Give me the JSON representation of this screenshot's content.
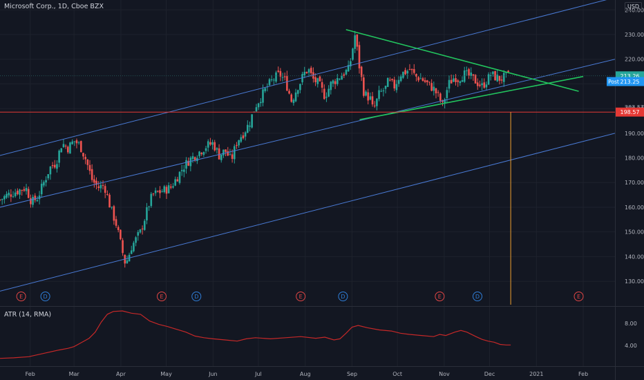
{
  "chart_data": {
    "type": "line",
    "title": "Microsoft Corp., 1D, Cboe BZX",
    "currency": "USD",
    "y_ticks": [
      "130.00",
      "140.00",
      "150.00",
      "160.00",
      "170.00",
      "180.00",
      "190.00",
      "200.00",
      "210.00",
      "220.00",
      "230.00",
      "240.00"
    ],
    "y_tick_values": [
      130,
      140,
      150,
      160,
      170,
      180,
      190,
      200,
      210,
      220,
      230,
      240
    ],
    "ylim": [
      120.5,
      244
    ],
    "x_ticks": [
      "Feb",
      "Mar",
      "Apr",
      "May",
      "Jun",
      "Jul",
      "Aug",
      "Sep",
      "Oct",
      "Nov",
      "Dec",
      "2021",
      "Feb"
    ],
    "x_tick_days": [
      31,
      60,
      91,
      121,
      152,
      182,
      213,
      244,
      274,
      305,
      335,
      366,
      397
    ],
    "xlim": [
      11,
      418
    ],
    "close_path": [
      [
        11,
        163
      ],
      [
        16,
        165
      ],
      [
        20,
        166
      ],
      [
        24,
        167
      ],
      [
        28,
        168
      ],
      [
        32,
        162
      ],
      [
        36,
        164
      ],
      [
        40,
        170
      ],
      [
        44,
        176
      ],
      [
        48,
        178
      ],
      [
        52,
        186
      ],
      [
        56,
        184
      ],
      [
        60,
        187
      ],
      [
        64,
        185
      ],
      [
        68,
        179
      ],
      [
        72,
        171
      ],
      [
        76,
        168
      ],
      [
        80,
        169
      ],
      [
        84,
        160
      ],
      [
        88,
        153
      ],
      [
        92,
        142
      ],
      [
        94,
        137
      ],
      [
        96,
        140
      ],
      [
        98,
        144
      ],
      [
        100,
        146
      ],
      [
        104,
        150
      ],
      [
        108,
        158
      ],
      [
        110,
        162
      ],
      [
        112,
        165
      ],
      [
        116,
        166
      ],
      [
        120,
        167
      ],
      [
        124,
        168
      ],
      [
        128,
        172
      ],
      [
        132,
        176
      ],
      [
        136,
        179
      ],
      [
        140,
        181
      ],
      [
        144,
        183
      ],
      [
        148,
        185
      ],
      [
        152,
        186
      ],
      [
        156,
        181
      ],
      [
        160,
        183
      ],
      [
        164,
        179
      ],
      [
        168,
        187
      ],
      [
        172,
        190
      ],
      [
        176,
        194
      ],
      [
        180,
        201
      ],
      [
        184,
        205
      ],
      [
        188,
        209
      ],
      [
        192,
        212
      ],
      [
        196,
        214
      ],
      [
        200,
        211
      ],
      [
        204,
        203
      ],
      [
        208,
        209
      ],
      [
        210,
        211
      ],
      [
        212,
        214
      ],
      [
        215,
        216
      ],
      [
        218,
        212
      ],
      [
        222,
        210
      ],
      [
        226,
        205
      ],
      [
        230,
        210
      ],
      [
        234,
        212
      ],
      [
        238,
        214
      ],
      [
        242,
        216
      ],
      [
        246,
        230
      ],
      [
        247,
        226
      ],
      [
        248,
        220
      ],
      [
        252,
        206
      ],
      [
        256,
        204
      ],
      [
        258,
        199
      ],
      [
        262,
        206
      ],
      [
        266,
        208
      ],
      [
        268,
        211
      ],
      [
        272,
        209
      ],
      [
        276,
        214
      ],
      [
        280,
        215
      ],
      [
        282,
        216
      ],
      [
        286,
        213
      ],
      [
        290,
        212
      ],
      [
        294,
        210
      ],
      [
        298,
        208
      ],
      [
        302,
        204
      ],
      [
        304,
        201
      ],
      [
        306,
        206
      ],
      [
        308,
        210
      ],
      [
        312,
        213
      ],
      [
        314,
        212
      ],
      [
        318,
        214
      ],
      [
        322,
        213
      ],
      [
        326,
        211
      ],
      [
        330,
        209
      ],
      [
        334,
        212
      ],
      [
        336,
        214
      ],
      [
        338,
        213
      ],
      [
        342,
        212
      ],
      [
        346,
        213
      ],
      [
        348,
        213.25
      ]
    ],
    "price_labels": {
      "last": "213.26",
      "post": "213.25",
      "post_prefix": "Post",
      "hline": "198.57",
      "upper_tick": "203.57"
    },
    "price_values": {
      "last": 213.26,
      "post": 213.25,
      "hline": 198.57
    },
    "events": [
      {
        "day": 25,
        "label": "E",
        "kind": "earnings"
      },
      {
        "day": 41,
        "label": "D",
        "kind": "dividend"
      },
      {
        "day": 118,
        "label": "E",
        "kind": "earnings"
      },
      {
        "day": 141,
        "label": "D",
        "kind": "dividend"
      },
      {
        "day": 210,
        "label": "E",
        "kind": "earnings"
      },
      {
        "day": 238,
        "label": "D",
        "kind": "dividend"
      },
      {
        "day": 302,
        "label": "E",
        "kind": "earnings"
      },
      {
        "day": 327,
        "label": "D",
        "kind": "dividend"
      },
      {
        "day": 394,
        "label": "E",
        "kind": "earnings"
      }
    ],
    "trendlines": [
      {
        "name": "channel-upper",
        "color": "#4a7bd6",
        "p1": [
          11,
          181
        ],
        "p2": [
          418,
          245
        ]
      },
      {
        "name": "channel-middle",
        "color": "#4a7bd6",
        "p1": [
          11,
          160
        ],
        "p2": [
          418,
          220
        ]
      },
      {
        "name": "channel-lower",
        "color": "#4a7bd6",
        "p1": [
          11,
          126
        ],
        "p2": [
          418,
          190
        ]
      },
      {
        "name": "triangle-upper",
        "color": "#22c55e",
        "p1": [
          240,
          232
        ],
        "p2": [
          394,
          207
        ]
      },
      {
        "name": "triangle-lower",
        "color": "#22c55e",
        "p1": [
          249,
          195.5
        ],
        "p2": [
          397,
          213
        ]
      }
    ],
    "vline_day": 349,
    "atr": {
      "title": "ATR (14, RMA)",
      "y_ticks": [
        "4.00",
        "8.00"
      ],
      "y_tick_values": [
        4,
        8
      ],
      "ylim": [
        0.3,
        10.7
      ],
      "values": [
        [
          11,
          1.7
        ],
        [
          20,
          1.8
        ],
        [
          30,
          2.0
        ],
        [
          40,
          2.6
        ],
        [
          50,
          3.2
        ],
        [
          56,
          3.5
        ],
        [
          60,
          3.8
        ],
        [
          64,
          4.4
        ],
        [
          70,
          5.3
        ],
        [
          74,
          6.4
        ],
        [
          78,
          8.2
        ],
        [
          82,
          9.6
        ],
        [
          86,
          10.1
        ],
        [
          92,
          10.2
        ],
        [
          98,
          9.8
        ],
        [
          104,
          9.6
        ],
        [
          110,
          8.4
        ],
        [
          116,
          7.8
        ],
        [
          122,
          7.4
        ],
        [
          128,
          6.9
        ],
        [
          134,
          6.4
        ],
        [
          140,
          5.7
        ],
        [
          146,
          5.4
        ],
        [
          152,
          5.2
        ],
        [
          160,
          5.0
        ],
        [
          168,
          4.8
        ],
        [
          174,
          5.2
        ],
        [
          180,
          5.4
        ],
        [
          190,
          5.2
        ],
        [
          200,
          5.4
        ],
        [
          210,
          5.6
        ],
        [
          220,
          5.3
        ],
        [
          226,
          5.5
        ],
        [
          232,
          5.0
        ],
        [
          236,
          5.2
        ],
        [
          240,
          6.2
        ],
        [
          244,
          7.3
        ],
        [
          248,
          7.6
        ],
        [
          254,
          7.2
        ],
        [
          262,
          6.8
        ],
        [
          270,
          6.6
        ],
        [
          276,
          6.2
        ],
        [
          282,
          6.0
        ],
        [
          290,
          5.8
        ],
        [
          298,
          5.6
        ],
        [
          302,
          6.0
        ],
        [
          306,
          5.8
        ],
        [
          312,
          6.4
        ],
        [
          316,
          6.7
        ],
        [
          320,
          6.4
        ],
        [
          326,
          5.6
        ],
        [
          330,
          5.1
        ],
        [
          334,
          4.8
        ],
        [
          338,
          4.6
        ],
        [
          342,
          4.2
        ],
        [
          346,
          4.1
        ],
        [
          349,
          4.1
        ]
      ]
    },
    "colors": {
      "background": "#131722",
      "up": "#26a69a",
      "down": "#ef5350",
      "grid": "#1e222d",
      "channel": "#4a7bd6",
      "triangle": "#22c55e",
      "hline": "#e53935",
      "vline": "#f0a030",
      "atr": "#c62828",
      "last_label": "#26a69a",
      "post_label": "#2196f3",
      "text": "#b2b5be"
    }
  }
}
